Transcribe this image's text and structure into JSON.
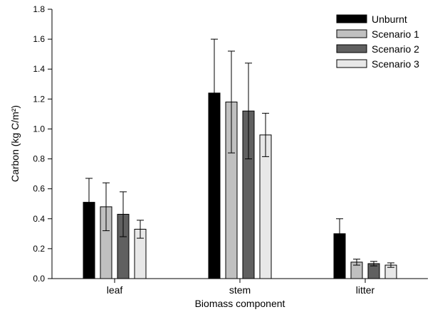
{
  "chart_data": {
    "type": "bar",
    "title": "",
    "xlabel": "Biomass component",
    "ylabel": "Carbon (kg C/m²)",
    "ylim": [
      0,
      1.8
    ],
    "yticks": [
      "0.0",
      "0.2",
      "0.4",
      "0.6",
      "0.8",
      "1.0",
      "1.2",
      "1.4",
      "1.6",
      "1.8"
    ],
    "categories": [
      "leaf",
      "stem",
      "litter"
    ],
    "grid": false,
    "legend": "top-right",
    "series": [
      {
        "name": "Unburnt",
        "color": "#000000",
        "values": [
          0.51,
          1.24,
          0.3
        ],
        "errors": [
          0.16,
          0.36,
          0.1
        ]
      },
      {
        "name": "Scenario 1",
        "color": "#c0c0c0",
        "values": [
          0.48,
          1.18,
          0.11
        ],
        "errors": [
          0.16,
          0.34,
          0.02
        ]
      },
      {
        "name": "Scenario 2",
        "color": "#606060",
        "values": [
          0.43,
          1.12,
          0.1
        ],
        "errors": [
          0.15,
          0.32,
          0.015
        ]
      },
      {
        "name": "Scenario 3",
        "color": "#e8e8e8",
        "values": [
          0.33,
          0.96,
          0.09
        ],
        "errors": [
          0.06,
          0.145,
          0.015
        ]
      }
    ]
  }
}
